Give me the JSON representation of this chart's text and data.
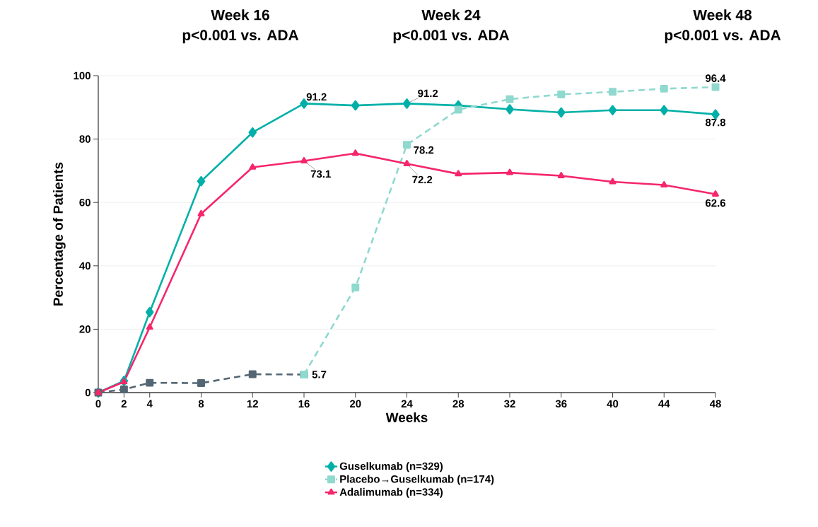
{
  "chart_data": {
    "type": "line",
    "xlabel": "Weeks",
    "ylabel": "Percentage of Patients",
    "annotations": [
      "Week 16",
      "p<0.001 vs. ADA",
      "Week 24",
      "p<0.001 vs. ADA",
      "Week 48",
      "p<0.001 vs. ADA"
    ],
    "xlim": [
      0,
      48
    ],
    "xticks": [
      0,
      2,
      4,
      8,
      12,
      16,
      20,
      24,
      28,
      32,
      36,
      40,
      44,
      48
    ],
    "ylim": [
      0,
      100
    ],
    "yticks": [
      0,
      20,
      40,
      60,
      80,
      100
    ],
    "grid": "y",
    "legend": "bottom",
    "series": [
      {
        "name": "Guselkumab (n=329)",
        "color": "#00b0a8",
        "marker": "diamond",
        "line_style": "solid",
        "x": [
          0,
          2,
          4,
          8,
          12,
          16,
          20,
          24,
          28,
          32,
          36,
          40,
          44,
          48
        ],
        "values": [
          0,
          3.7,
          25.4,
          66.7,
          82.1,
          91.2,
          90.6,
          91.2,
          90.6,
          89.4,
          88.4,
          89.1,
          89.1,
          87.8
        ],
        "value_labels": [
          null,
          null,
          null,
          null,
          null,
          "91.2",
          null,
          "91.2",
          null,
          null,
          null,
          null,
          null,
          "87.8"
        ]
      },
      {
        "color": "#546673",
        "marker": "square",
        "line_style": "dashed",
        "x": [
          0,
          2,
          4,
          8,
          12,
          16
        ],
        "values": [
          0,
          1.0,
          3.1,
          3.0,
          5.8,
          5.7
        ],
        "value_labels": [
          null,
          null,
          null,
          null,
          null,
          "5.7"
        ]
      },
      {
        "name": "Placebo→Guselkumab (n=174)",
        "color": "#8fd9cf",
        "marker": "square",
        "line_style": "dashed",
        "x": [
          16,
          20,
          24,
          28,
          32,
          36,
          40,
          44,
          48
        ],
        "values": [
          5.7,
          33.2,
          78.2,
          89.3,
          92.6,
          94.1,
          94.9,
          95.9,
          96.4
        ],
        "value_labels": [
          null,
          null,
          "78.2",
          null,
          null,
          null,
          null,
          null,
          "96.4"
        ]
      },
      {
        "name": "Adalimumab (n=334)",
        "color": "#f5266a",
        "marker": "triangle",
        "line_style": "solid",
        "x": [
          0,
          2,
          4,
          8,
          12,
          16,
          20,
          24,
          28,
          32,
          36,
          40,
          44,
          48
        ],
        "values": [
          0,
          3.4,
          20.6,
          56.4,
          71.1,
          73.1,
          75.5,
          72.2,
          69.0,
          69.4,
          68.4,
          66.5,
          65.5,
          62.6
        ],
        "value_labels": [
          null,
          null,
          null,
          null,
          null,
          "73.1",
          null,
          "72.2",
          null,
          null,
          null,
          null,
          null,
          "62.6"
        ]
      }
    ]
  }
}
